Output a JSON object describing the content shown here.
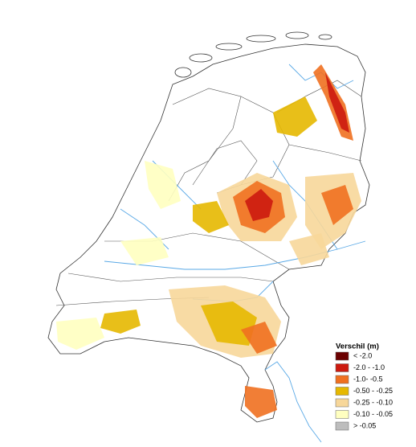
{
  "legend": {
    "title": "Verschil (m)",
    "items": [
      {
        "label": "< -2.0",
        "color": "#6b0000"
      },
      {
        "label": "-2.0 - -1.0",
        "color": "#cc1a0f"
      },
      {
        "label": "-1.0- -0.5",
        "color": "#f07020"
      },
      {
        "label": "-0.50 - -0.25",
        "color": "#e6b800"
      },
      {
        "label": "-0.25 - -0.10",
        "color": "#f7d79a"
      },
      {
        "label": "-0.10 - -0.05",
        "color": "#ffffc0"
      },
      {
        "label": "> -0.05",
        "color": "#bdbdbd"
      }
    ]
  }
}
